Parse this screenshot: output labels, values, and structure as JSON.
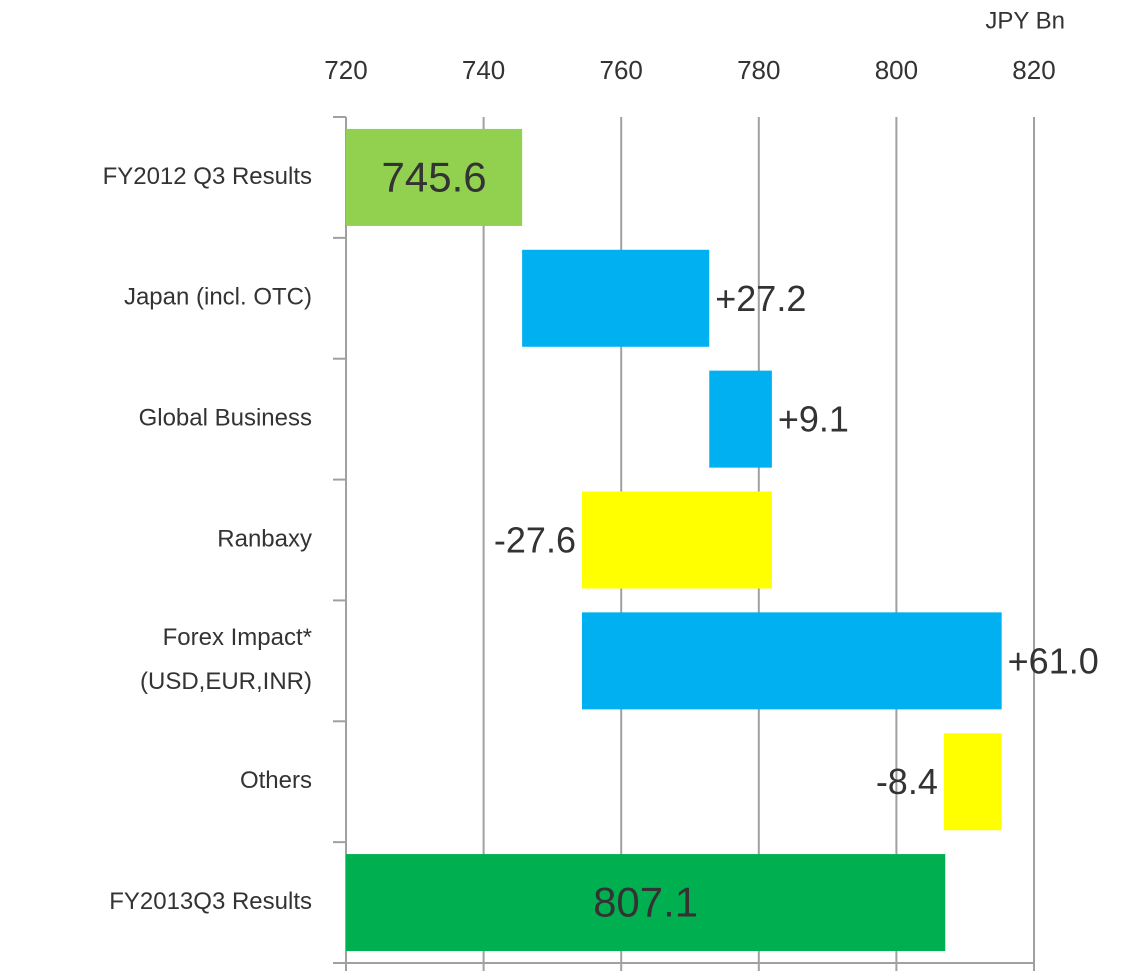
{
  "chart_data": {
    "type": "waterfall",
    "x_axis_label": "JPY Bn",
    "categories": [
      "FY2012 Q3 Results",
      "Japan (incl. OTC)",
      "Global Business",
      "Ranbaxy",
      "Forex Impact*\n(USD,EUR,INR)",
      "Others",
      "FY2013Q3 Results"
    ],
    "values": [
      745.6,
      27.2,
      9.1,
      -27.6,
      61.0,
      -8.4,
      807.1
    ],
    "value_labels": [
      "745.6",
      "+27.2",
      "+9.1",
      "-27.6",
      "+61.0",
      "-8.4",
      "807.1"
    ],
    "totals": [
      true,
      false,
      false,
      false,
      false,
      false,
      true
    ],
    "colors": [
      "#92d050",
      "#00b0f0",
      "#00b0f0",
      "#ffff00",
      "#00b0f0",
      "#ffff00",
      "#00b050"
    ],
    "xlim": [
      720,
      820
    ],
    "xticks": [
      720,
      740,
      760,
      780,
      800,
      820
    ],
    "grid": true
  }
}
